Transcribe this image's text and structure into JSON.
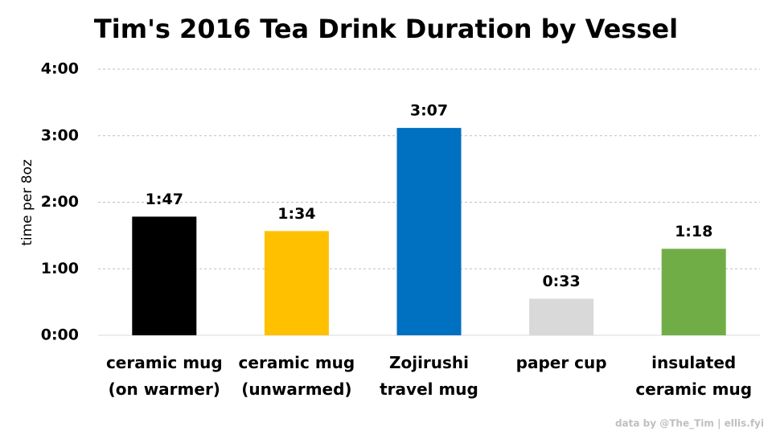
{
  "chart_data": {
    "type": "bar",
    "title": "Tim's 2016 Tea Drink Duration by Vessel",
    "y_label": "time per 8oz",
    "categories": [
      "ceramic mug\n(on warmer)",
      "ceramic mug\n(unwarmed)",
      "Zojirushi\ntravel mug",
      "paper cup",
      "insulated\nceramic mug"
    ],
    "values": [
      107,
      94,
      187,
      33,
      78
    ],
    "value_labels": [
      "1:47",
      "1:34",
      "3:07",
      "0:33",
      "1:18"
    ],
    "colors": [
      "#000000",
      "#ffc000",
      "#0070c0",
      "#d9d9d9",
      "#70ad47"
    ],
    "ylim": [
      0,
      240
    ],
    "yticks": [
      {
        "value": 0,
        "label": "0:00"
      },
      {
        "value": 60,
        "label": "1:00"
      },
      {
        "value": 120,
        "label": "2:00"
      },
      {
        "value": 180,
        "label": "3:00"
      },
      {
        "value": 240,
        "label": "4:00"
      }
    ],
    "grid": true,
    "source": "data by @The_Tim | ellis.fyi"
  }
}
